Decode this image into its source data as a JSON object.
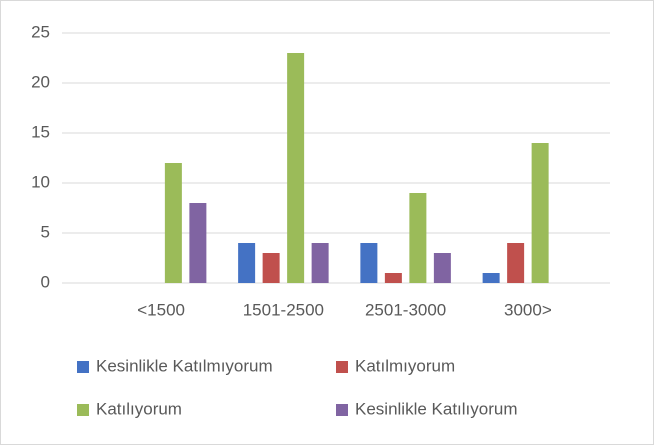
{
  "chart_data": {
    "type": "bar",
    "categories": [
      "<1500",
      "1501-2500",
      "2501-3000",
      "3000>"
    ],
    "series": [
      {
        "name": "Kesinlikle Katılmıyorum",
        "color": "#4472c4",
        "values": [
          0,
          4,
          4,
          1
        ]
      },
      {
        "name": "Katılmıyorum",
        "color": "#c0504d",
        "values": [
          0,
          3,
          1,
          4
        ]
      },
      {
        "name": "Katılıyorum",
        "color": "#9bbb59",
        "values": [
          12,
          23,
          9,
          14
        ]
      },
      {
        "name": "Kesinlikle Katılıyorum",
        "color": "#8064a2",
        "values": [
          8,
          4,
          3,
          0
        ]
      }
    ],
    "ylim": [
      0,
      25
    ],
    "yticks": [
      0,
      5,
      10,
      15,
      20,
      25
    ],
    "grid": true,
    "legend": "bottom"
  }
}
